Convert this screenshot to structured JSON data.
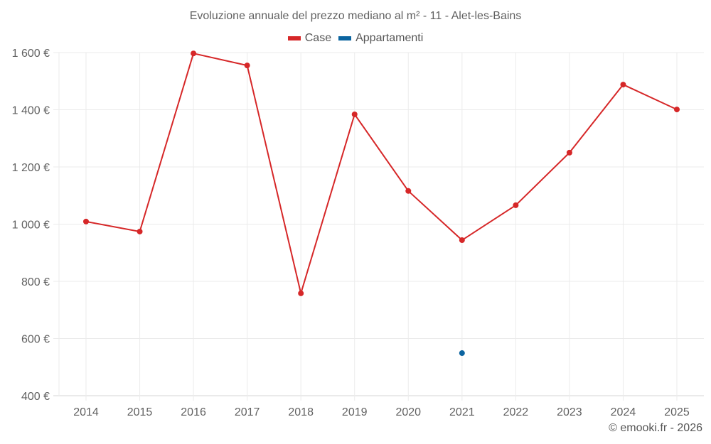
{
  "title": "Evoluzione annuale del prezzo mediano al m² - 11 - Alet-les-Bains",
  "legend": [
    {
      "label": "Case",
      "color": "#d62728"
    },
    {
      "label": "Appartamenti",
      "color": "#0b64a0"
    }
  ],
  "credit": "© emooki.fr - 2026",
  "chart_data": {
    "type": "line",
    "title": "Evoluzione annuale del prezzo mediano al m² - 11 - Alet-les-Bains",
    "xlabel": "",
    "ylabel": "",
    "categories": [
      "2014",
      "2015",
      "2016",
      "2017",
      "2018",
      "2019",
      "2020",
      "2021",
      "2022",
      "2023",
      "2024",
      "2025"
    ],
    "series": [
      {
        "name": "Case",
        "color": "#d62728",
        "values": [
          1009,
          974,
          1597,
          1555,
          758,
          1384,
          1116,
          944,
          1066,
          1250,
          1488,
          1401
        ]
      },
      {
        "name": "Appartamenti",
        "color": "#0b64a0",
        "values": [
          null,
          null,
          null,
          null,
          null,
          null,
          null,
          549,
          null,
          null,
          null,
          null
        ]
      }
    ],
    "ylim": [
      400,
      1600
    ],
    "yticks": [
      400,
      600,
      800,
      1000,
      1200,
      1400,
      1600
    ],
    "ytick_labels": [
      "400 €",
      "600 €",
      "800 €",
      "1 000 €",
      "1 200 €",
      "1 400 €",
      "1 600 €"
    ],
    "grid": true,
    "legend_position": "top"
  }
}
